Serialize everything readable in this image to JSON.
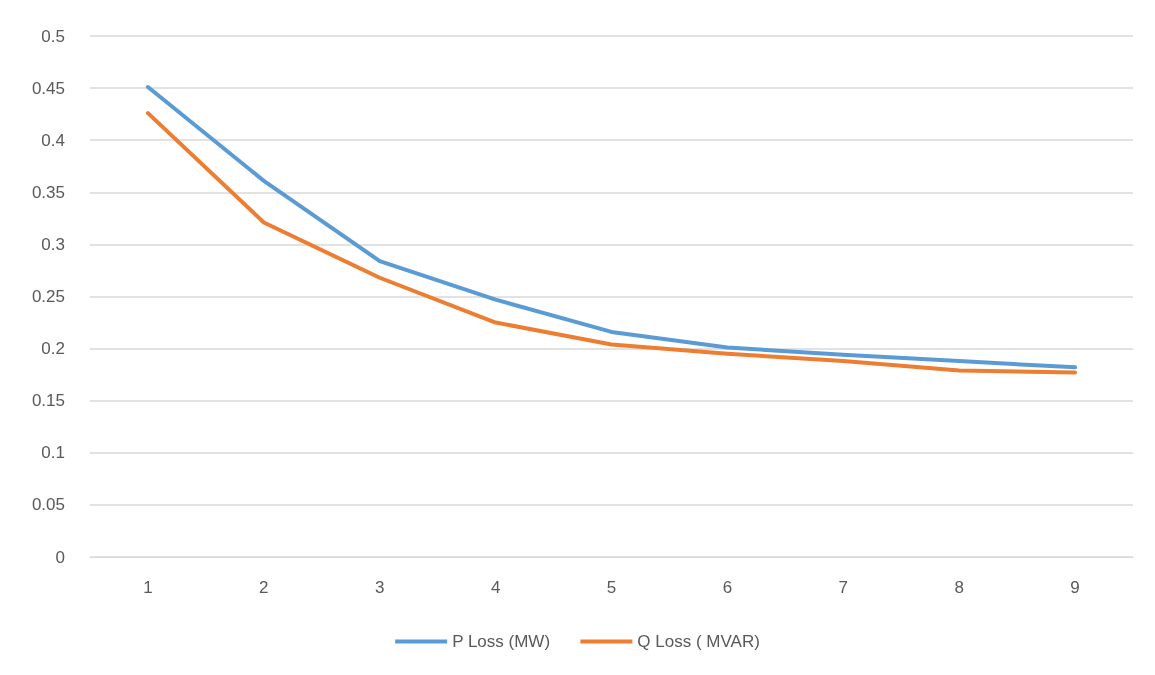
{
  "chart_data": {
    "type": "line",
    "categories": [
      "1",
      "2",
      "3",
      "4",
      "5",
      "6",
      "7",
      "8",
      "9"
    ],
    "series": [
      {
        "name": "P Loss (MW)",
        "color": "#5b9bd5",
        "values": [
          0.451,
          0.361,
          0.284,
          0.247,
          0.216,
          0.201,
          0.194,
          0.188,
          0.182
        ]
      },
      {
        "name": "Q Loss ( MVAR)",
        "color": "#ed7d31",
        "values": [
          0.426,
          0.321,
          0.268,
          0.225,
          0.204,
          0.195,
          0.188,
          0.179,
          0.177
        ]
      }
    ],
    "ylim": [
      0,
      0.5
    ],
    "yticks": [
      0,
      0.05,
      0.1,
      0.15,
      0.2,
      0.25,
      0.3,
      0.35,
      0.4,
      0.45,
      0.5
    ],
    "grid": "y",
    "legend": "bottom",
    "marker": "none",
    "line_style": "solid"
  }
}
